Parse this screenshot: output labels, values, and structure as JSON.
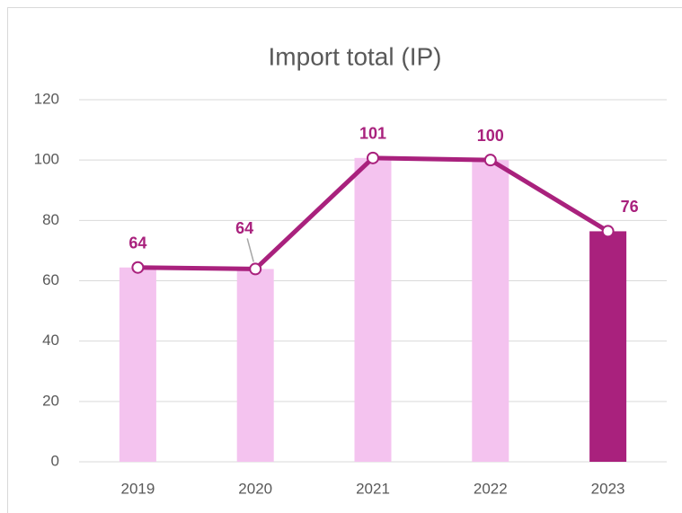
{
  "chart_data": {
    "type": "bar",
    "title": "Import total (IP)",
    "categories": [
      "2019",
      "2020",
      "2021",
      "2022",
      "2023"
    ],
    "values": [
      64.4,
      63.9,
      100.7,
      100,
      76.4
    ],
    "value_labels": [
      "64",
      "64",
      "101",
      "100",
      "76"
    ],
    "colors": [
      "#f4c3ef",
      "#f4c3ef",
      "#f4c3ef",
      "#f4c3ef",
      "#a9217d"
    ],
    "line_color": "#a9217d",
    "ylim": [
      0,
      120
    ],
    "yticks": [
      0,
      20,
      40,
      60,
      80,
      100,
      120
    ],
    "grid": true
  }
}
